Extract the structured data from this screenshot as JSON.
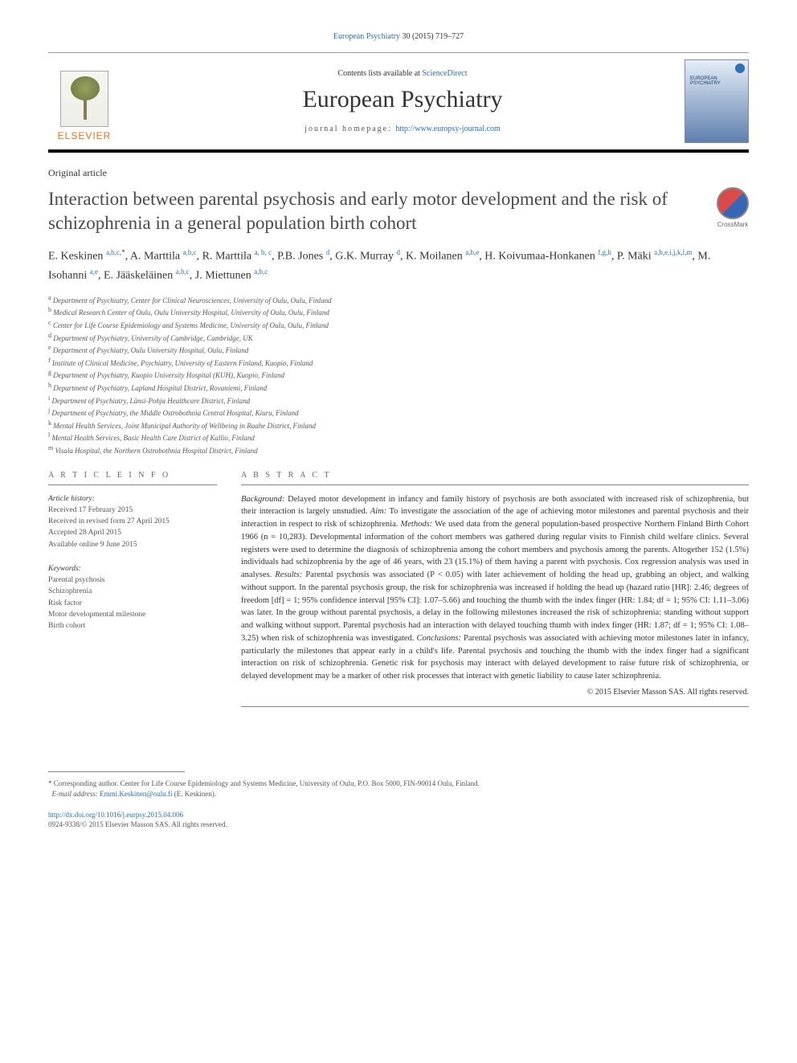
{
  "header": {
    "citation_prefix": "European Psychiatry",
    "citation_range": "30 (2015) 719–727",
    "contents_prefix": "Contents lists available at ",
    "contents_link": "ScienceDirect",
    "journal_name": "European Psychiatry",
    "journal_home_prefix": "journal homepage: ",
    "journal_home_link": "http://www.europsy-journal.com",
    "elsevier": "ELSEVIER",
    "cover_title": "EUROPEAN PSYCHIATRY"
  },
  "article": {
    "type": "Original article",
    "title": "Interaction between parental psychosis and early motor development and the risk of schizophrenia in a general population birth cohort",
    "crossmark": "CrossMark"
  },
  "authors_html": "E. Keskinen <sup>a,b,c,</sup><sup class='black'>*</sup>, A. Marttila <sup>a,b,c</sup>, R. Marttila <sup>a, b, c</sup>, P.B. Jones <sup>d</sup>, G.K. Murray <sup>d</sup>, K. Moilanen <sup>a,b,e</sup>, H. Koivumaa-Honkanen <sup>f,g,h</sup>, P. Mäki <sup>a,b,e,i,j,k,l,m</sup>, M. Isohanni <sup>a,e</sup>, E. Jääskeläinen <sup>a,b,c</sup>, J. Miettunen <sup>a,b,c</sup>",
  "affiliations": [
    {
      "sup": "a",
      "text": "Department of Psychiatry, Center for Clinical Neurosciences, University of Oulu, Oulu, Finland"
    },
    {
      "sup": "b",
      "text": "Medical Research Center of Oulu, Oulu University Hospital, University of Oulu, Oulu, Finland"
    },
    {
      "sup": "c",
      "text": "Center for Life Course Epidemiology and Systems Medicine, University of Oulu, Oulu, Finland"
    },
    {
      "sup": "d",
      "text": "Department of Psychiatry, University of Cambridge, Cambridge, UK"
    },
    {
      "sup": "e",
      "text": "Department of Psychiatry, Oulu University Hospital, Oulu, Finland"
    },
    {
      "sup": "f",
      "text": "Institute of Clinical Medicine, Psychiatry, University of Eastern Finland, Kuopio, Finland"
    },
    {
      "sup": "g",
      "text": "Department of Psychiatry, Kuopio University Hospital (KUH), Kuopio, Finland"
    },
    {
      "sup": "h",
      "text": "Department of Psychiatry, Lapland Hospital District, Rovaniemi, Finland"
    },
    {
      "sup": "i",
      "text": "Department of Psychiatry, Länsi-Pohja Healthcare District, Finland"
    },
    {
      "sup": "j",
      "text": "Department of Psychiatry, the Middle Ostrobothnia Central Hospital, Kiuru, Finland"
    },
    {
      "sup": "k",
      "text": "Mental Health Services, Joint Municipal Authority of Wellbeing in Raahe District, Finland"
    },
    {
      "sup": "l",
      "text": "Mental Health Services, Basic Health Care District of Kallio, Finland"
    },
    {
      "sup": "m",
      "text": "Visala Hospital, the Northern Ostrobothnia Hospital District, Finland"
    }
  ],
  "article_info": {
    "label": "A R T I C L E   I N F O",
    "history_label": "Article history:",
    "history": [
      "Received 17 February 2015",
      "Received in revised form 27 April 2015",
      "Accepted 28 April 2015",
      "Available online 9 June 2015"
    ],
    "keywords_label": "Keywords:",
    "keywords": [
      "Parental psychosis",
      "Schizophrenia",
      "Risk factor",
      "Motor developmental milestone",
      "Birth cohort"
    ]
  },
  "abstract": {
    "label": "A B S T R A C T",
    "sections": [
      {
        "h": "Background:",
        "t": "Delayed motor development in infancy and family history of psychosis are both associated with increased risk of schizophrenia, but their interaction is largely unstudied."
      },
      {
        "h": "Aim:",
        "t": "To investigate the association of the age of achieving motor milestones and parental psychosis and their interaction in respect to risk of schizophrenia."
      },
      {
        "h": "Methods:",
        "t": "We used data from the general population-based prospective Northern Finland Birth Cohort 1966 (n = 10,283). Developmental information of the cohort members was gathered during regular visits to Finnish child welfare clinics. Several registers were used to determine the diagnosis of schizophrenia among the cohort members and psychosis among the parents. Altogether 152 (1.5%) individuals had schizophrenia by the age of 46 years, with 23 (15.1%) of them having a parent with psychosis. Cox regression analysis was used in analyses."
      },
      {
        "h": "Results:",
        "t": "Parental psychosis was associated (P < 0.05) with later achievement of holding the head up, grabbing an object, and walking without support. In the parental psychosis group, the risk for schizophrenia was increased if holding the head up (hazard ratio [HR]: 2.46; degrees of freedom [df] = 1; 95% confidence interval [95% CI]: 1.07–5.66) and touching the thumb with the index finger (HR: 1.84; df = 1; 95% CI: 1.11–3.06) was later. In the group without parental psychosis, a delay in the following milestones increased the risk of schizophrenia: standing without support and walking without support. Parental psychosis had an interaction with delayed touching thumb with index finger (HR: 1.87; df = 1; 95% CI: 1.08–3.25) when risk of schizophrenia was investigated."
      },
      {
        "h": "Conclusions:",
        "t": "Parental psychosis was associated with achieving motor milestones later in infancy, particularly the milestones that appear early in a child's life. Parental psychosis and touching the thumb with the index finger had a significant interaction on risk of schizophrenia. Genetic risk for psychosis may interact with delayed development to raise future risk of schizophrenia, or delayed development may be a marker of other risk processes that interact with genetic liability to cause later schizophrenia."
      }
    ],
    "copyright": "© 2015 Elsevier Masson SAS. All rights reserved."
  },
  "footer": {
    "star": "*",
    "corr_label": "Corresponding author. Center for Life Course Epidemiology and Systems Medicine, University of Oulu, P.O. Box 5000, FIN-90014 Oulu, Finland.",
    "email_label": "E-mail address:",
    "email": "Emmi.Keskinen@oulu.fi",
    "email_name": "(E. Keskinen).",
    "doi": "http://dx.doi.org/10.1016/j.eurpsy.2015.04.006",
    "issn_line": "0924-9338/© 2015 Elsevier Masson SAS. All rights reserved."
  },
  "colors": {
    "link": "#2a6eb0",
    "elsevier_orange": "#e9711c",
    "text": "#333333",
    "muted": "#555555",
    "rule": "#888888"
  }
}
